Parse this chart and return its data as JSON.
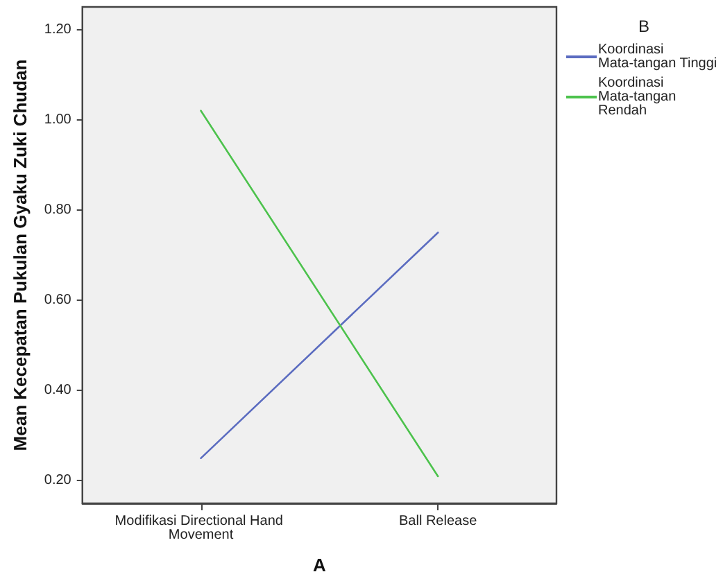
{
  "chart_data": {
    "type": "line",
    "xlabel": "A",
    "ylabel": "Mean Kecepatan Pukulan Gyaku Zuki Chudan",
    "legend_title": "B",
    "categories": [
      "Modifikasi Directional Hand Movement",
      "Ball Release"
    ],
    "series": [
      {
        "name": "Koordinasi Mata-tangan Tinggi",
        "color": "#5b6cc0",
        "values": [
          0.25,
          0.75
        ]
      },
      {
        "name": "Koordinasi Mata-tangan Rendah",
        "color": "#4cc24c",
        "values": [
          1.02,
          0.21
        ]
      }
    ],
    "ylim": [
      0.15,
      1.25
    ],
    "yticks": [
      {
        "value": 0.2,
        "label": "0.20"
      },
      {
        "value": 0.4,
        "label": "0.40"
      },
      {
        "value": 0.6,
        "label": "0.60"
      },
      {
        "value": 0.8,
        "label": "0.80"
      },
      {
        "value": 1.0,
        "label": "1.00"
      },
      {
        "value": 1.2,
        "label": "1.20"
      }
    ],
    "grid": false,
    "legend": "top right",
    "marker": "none",
    "line_style": "solid"
  }
}
